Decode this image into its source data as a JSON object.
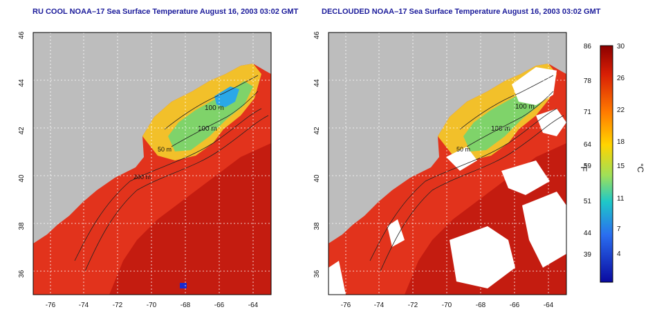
{
  "left_panel": {
    "title": "RU COOL NOAA–17 Sea Surface Temperature August 16, 2003 03:02 GMT"
  },
  "right_panel": {
    "title": "DECLOUDED NOAA–17 Sea Surface Temperature August 16, 2003 03:02 GMT"
  },
  "map_axes": {
    "lat_ticks": [
      "36",
      "38",
      "40",
      "42",
      "44",
      "46"
    ],
    "lon_ticks": [
      "-76",
      "-74",
      "-72",
      "-70",
      "-68",
      "-66",
      "-64"
    ],
    "lat_range": [
      35,
      46
    ],
    "lon_range": [
      -77,
      -63
    ]
  },
  "contour_labels": [
    "100 m",
    "100 m",
    "50 m",
    "200 m",
    "50 m",
    "100 m"
  ],
  "colorbar": {
    "unit_f": "°F",
    "unit_c": "°C",
    "f_ticks": [
      "86",
      "78",
      "71",
      "64",
      "59",
      "51",
      "44",
      "39"
    ],
    "c_ticks": [
      "30",
      "26",
      "22",
      "18",
      "15",
      "11",
      "7",
      "4"
    ],
    "c_range": [
      0,
      30
    ]
  },
  "colors": {
    "land": "#bdbdbd",
    "warm_ocean": "#e8301a",
    "deep_ocean": "#c81a10",
    "cloud": "#ffffff",
    "title": "#1a1a9a"
  }
}
